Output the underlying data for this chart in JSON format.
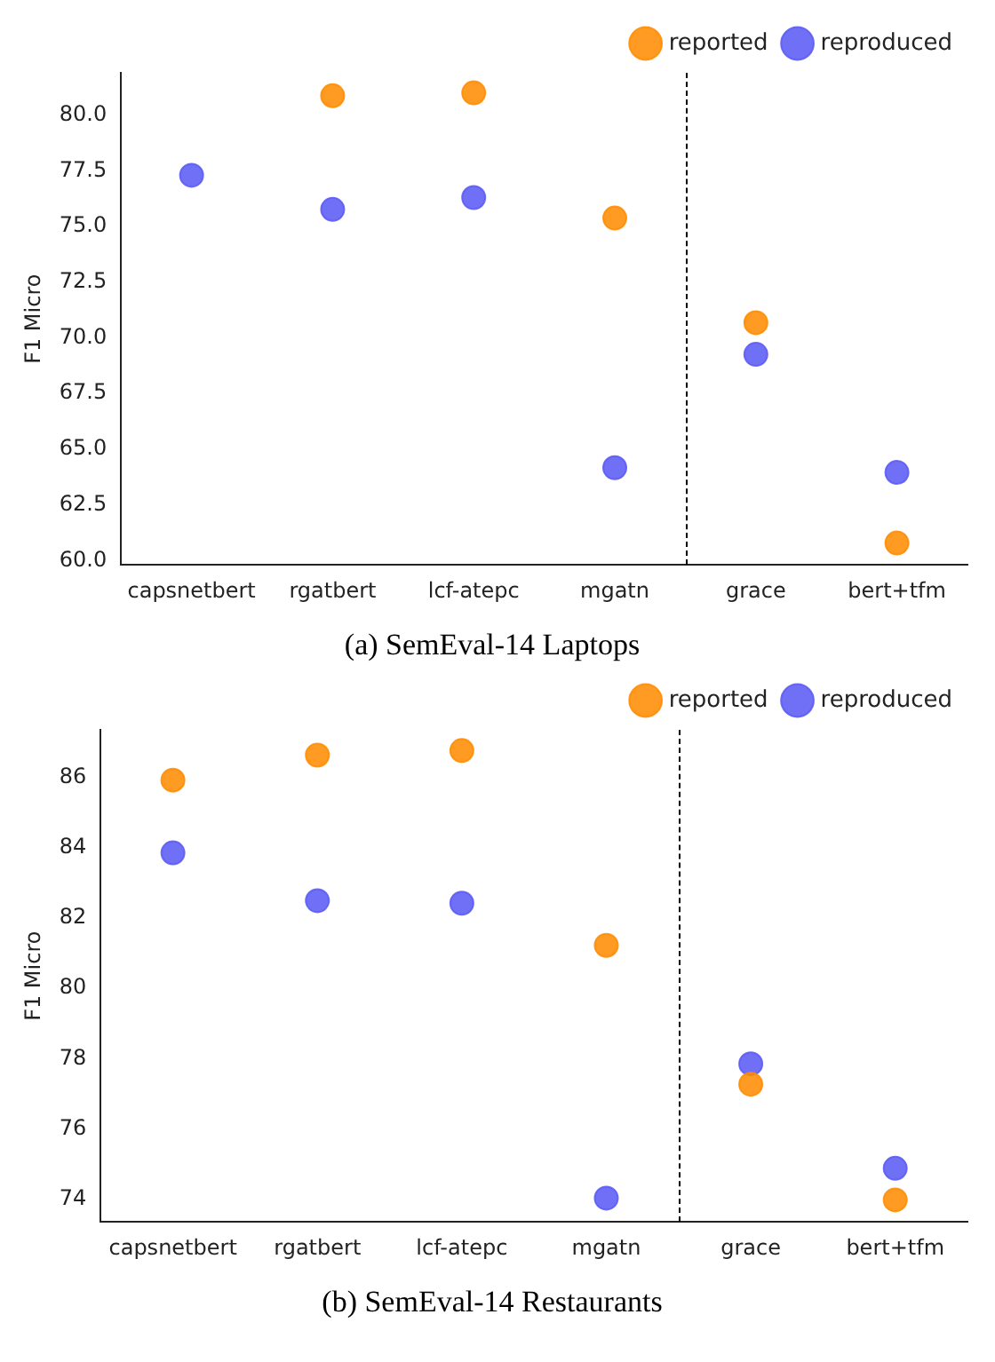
{
  "chart_data": [
    {
      "type": "scatter",
      "title": "(a) SemEval-14 Laptops",
      "ylabel": "F1 Micro",
      "categories": [
        "capsnetbert",
        "rgatbert",
        "lcf-atepc",
        "mgatn",
        "grace",
        "bert+tfm"
      ],
      "series": [
        {
          "name": "reported",
          "color": "#ff8c00",
          "values": [
            null,
            80.87,
            81.0,
            75.38,
            70.68,
            60.79
          ]
        },
        {
          "name": "reproduced",
          "color": "#5a5af5",
          "values": [
            77.3,
            75.77,
            76.3,
            64.17,
            69.26,
            63.96
          ]
        }
      ],
      "ylim": [
        59.8,
        81.9
      ],
      "yticks": [
        {
          "value": 60,
          "label": "60.0"
        },
        {
          "value": 62.5,
          "label": "62.5"
        },
        {
          "value": 65,
          "label": "65.0"
        },
        {
          "value": 67.5,
          "label": "67.5"
        },
        {
          "value": 70,
          "label": "70.0"
        },
        {
          "value": 72.5,
          "label": "72.5"
        },
        {
          "value": 75,
          "label": "75.0"
        },
        {
          "value": 77.5,
          "label": "77.5"
        },
        {
          "value": 80,
          "label": "80.0"
        }
      ],
      "grid": false,
      "legend": "top right",
      "marker": "circle"
    },
    {
      "type": "scatter",
      "title": "(b) SemEval-14 Restaurants",
      "ylabel": "F1 Micro",
      "categories": [
        "capsnetbert",
        "rgatbert",
        "lcf-atepc",
        "mgatn",
        "grace",
        "bert+tfm"
      ],
      "series": [
        {
          "name": "reported",
          "color": "#ff8c00",
          "values": [
            85.92,
            86.63,
            86.76,
            81.22,
            77.27,
            73.98
          ]
        },
        {
          "name": "reproduced",
          "color": "#5a5af5",
          "values": [
            83.85,
            82.49,
            82.42,
            74.03,
            77.85,
            74.88
          ]
        }
      ],
      "ylim": [
        73.35,
        87.35
      ],
      "yticks": [
        74,
        76,
        78,
        80,
        82,
        84,
        86
      ],
      "grid": false,
      "legend": "top right",
      "marker": "circle"
    }
  ]
}
